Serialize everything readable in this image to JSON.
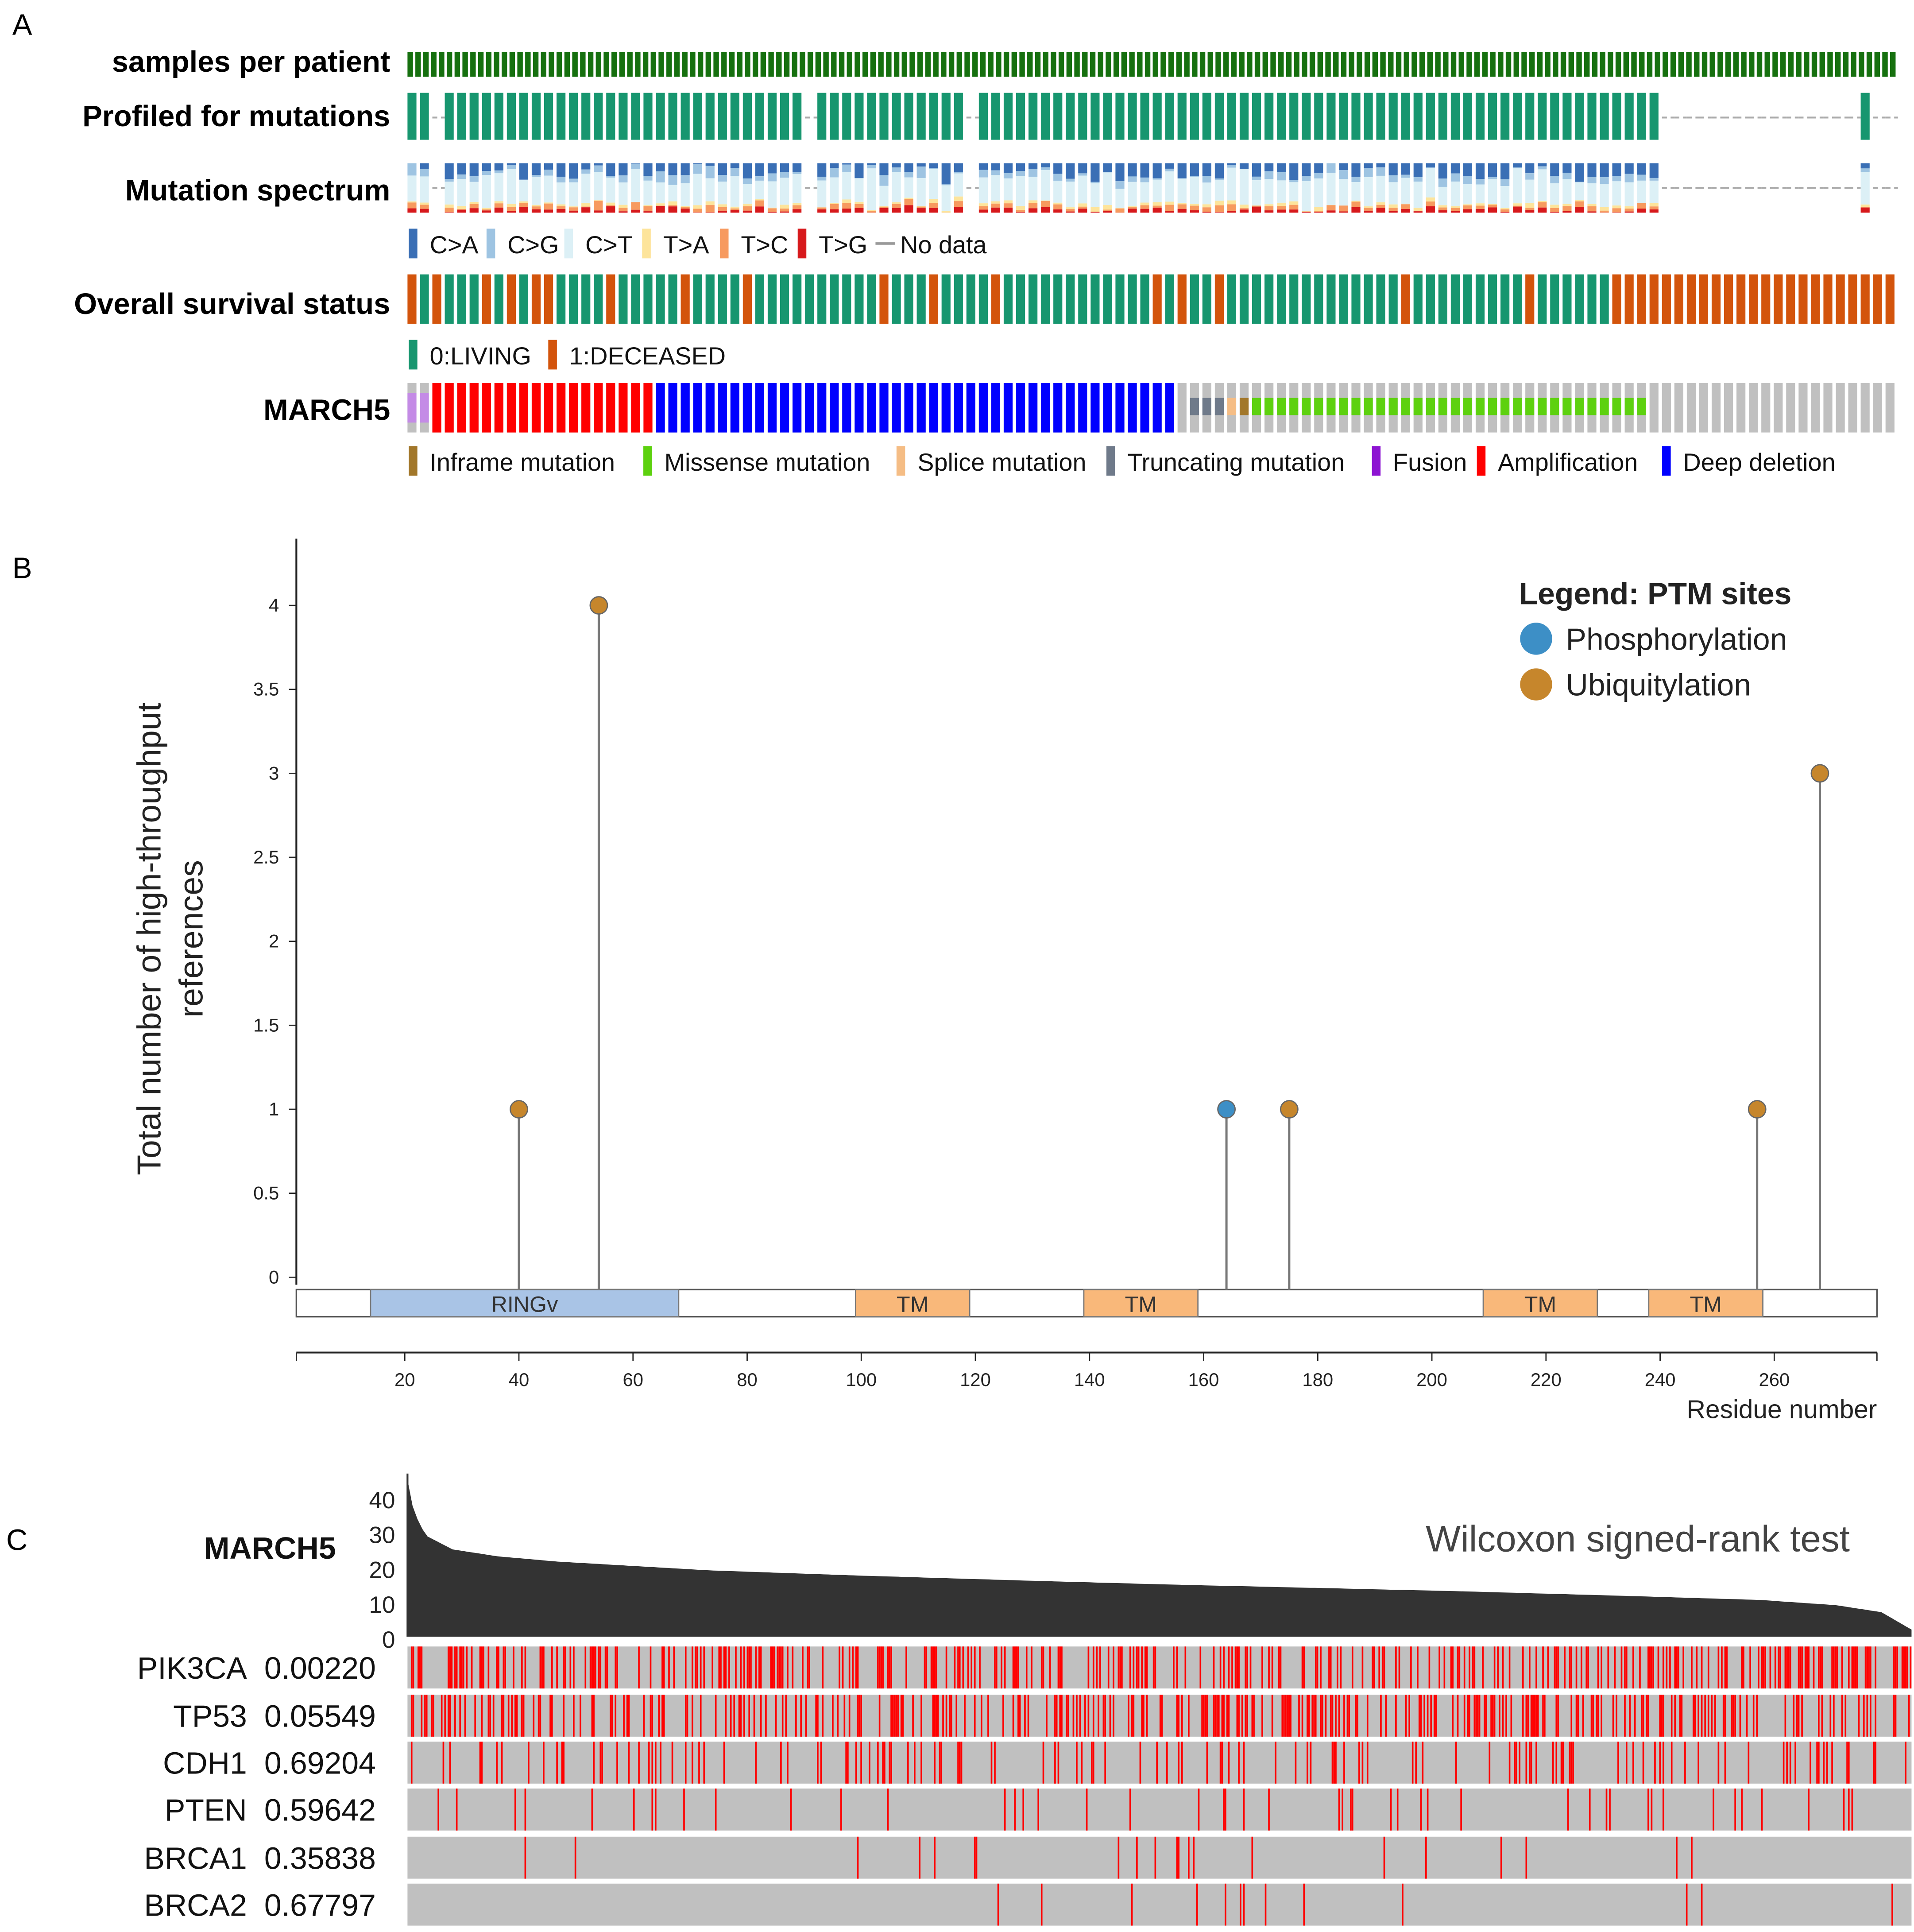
{
  "panels": {
    "a": "A",
    "b": "B",
    "c": "C"
  },
  "panel_a": {
    "rows": {
      "samples": "samples per patient",
      "profiled": "Profiled for mutations",
      "spectrum": "Mutation spectrum",
      "survival": "Overall survival status",
      "gene": "MARCH5"
    },
    "spectrum_legend": [
      {
        "label": "C>A",
        "color": "#3a6fb5"
      },
      {
        "label": "C>G",
        "color": "#9ec4e2"
      },
      {
        "label": "C>T",
        "color": "#dcf0f6"
      },
      {
        "label": "T>A",
        "color": "#fde49b"
      },
      {
        "label": "T>C",
        "color": "#f79a5f"
      },
      {
        "label": "T>G",
        "color": "#d7191c"
      }
    ],
    "no_data_label": "No data",
    "survival_legend": [
      {
        "label": "0:LIVING",
        "color": "#17966f"
      },
      {
        "label": "1:DECEASED",
        "color": "#d3540c"
      }
    ],
    "alteration_legend": [
      {
        "label": "Inframe mutation",
        "color": "#a2772a",
        "code": "I"
      },
      {
        "label": "Missense mutation",
        "color": "#5dd10f",
        "code": "M"
      },
      {
        "label": "Splice mutation",
        "color": "#f5bd85",
        "code": "S"
      },
      {
        "label": "Truncating mutation",
        "color": "#6f7a8a",
        "code": "T"
      },
      {
        "label": "Fusion",
        "color": "#8d14d2",
        "code": "F"
      },
      {
        "label": "Amplification",
        "color": "#ff0000",
        "code": "A"
      },
      {
        "label": "Deep deletion",
        "color": "#0000ff",
        "code": "D"
      }
    ],
    "profiled": "110111111111111111111111111111110111111111111011111111111111111111111111111111111111111111111111111110000000000000000100",
    "survival": "101000101011000010000010000100000000001000100001000000000000101001000000000000001000000000100000011111111111111111111111",
    "alterations": "FFAAAAAAAAAAAAAAAAAADDDDDDDDDDDDDDDDDDDDDDDDDDDDDDDDDDDDDDDDDDNTTTSIMMMMMMMMMMMMMMMMMMMMMMMMMMMMMMMMNNNNNNNNNNNNNNNNNNNNNNN"
  },
  "chart_data": [
    {
      "type": "scatter",
      "subtype": "lollipop",
      "title": "",
      "xlabel": "Residue number",
      "ylabel": "Total number of high-throughput references",
      "ylabel_lines": [
        "Total number of high-throughput",
        "references"
      ],
      "xlim": [
        1,
        278
      ],
      "ylim": [
        0,
        4
      ],
      "x_ticks": [
        "20",
        "40",
        "60",
        "80",
        "100",
        "120",
        "140",
        "160",
        "180",
        "200",
        "220",
        "240",
        "260"
      ],
      "y_ticks": [
        "0",
        "0.5",
        "1",
        "1.5",
        "2",
        "2.5",
        "3",
        "3.5",
        "4"
      ],
      "legend_title": "Legend: PTM sites",
      "legend_position": "top-right",
      "series": [
        {
          "name": "Phosphorylation",
          "color": "#3d8fc6",
          "points": [
            {
              "x": 164,
              "y": 1
            }
          ]
        },
        {
          "name": "Ubiquitylation",
          "color": "#c6862c",
          "points": [
            {
              "x": 40,
              "y": 1
            },
            {
              "x": 54,
              "y": 4
            },
            {
              "x": 175,
              "y": 1
            },
            {
              "x": 257,
              "y": 1
            },
            {
              "x": 268,
              "y": 3
            }
          ]
        }
      ],
      "domains": [
        {
          "name": "RINGv",
          "start": 14,
          "end": 68,
          "color": "#a9c4e6"
        },
        {
          "name": "TM",
          "start": 99,
          "end": 119,
          "color": "#f9b87a"
        },
        {
          "name": "TM",
          "start": 139,
          "end": 159,
          "color": "#f9b87a"
        },
        {
          "name": "TM",
          "start": 209,
          "end": 229,
          "color": "#f9b87a"
        },
        {
          "name": "TM",
          "start": 238,
          "end": 258,
          "color": "#f9b87a"
        }
      ]
    },
    {
      "type": "bar",
      "title": "MARCH5",
      "annotation": "Wilcoxon signed-rank test",
      "ylim": [
        0,
        45
      ],
      "y_ticks": [
        "0",
        "10",
        "20",
        "30",
        "40"
      ],
      "sorted_profile": [
        [
          0,
          45
        ],
        [
          0.004,
          36
        ],
        [
          0.012,
          29
        ],
        [
          0.03,
          25
        ],
        [
          0.06,
          23
        ],
        [
          0.1,
          21.5
        ],
        [
          0.2,
          19
        ],
        [
          0.3,
          17.5
        ],
        [
          0.4,
          16.2
        ],
        [
          0.5,
          15
        ],
        [
          0.6,
          14
        ],
        [
          0.7,
          13
        ],
        [
          0.8,
          11.8
        ],
        [
          0.9,
          10.5
        ],
        [
          0.95,
          9
        ],
        [
          0.98,
          7
        ],
        [
          1,
          2
        ]
      ],
      "mutation_tracks": [
        {
          "gene": "PIK3CA",
          "p_value": "0.00220",
          "mutation_rate": 0.33
        },
        {
          "gene": "TP53",
          "p_value": "0.05549",
          "mutation_rate": 0.33
        },
        {
          "gene": "CDH1",
          "p_value": "0.69204",
          "mutation_rate": 0.12
        },
        {
          "gene": "PTEN",
          "p_value": "0.59642",
          "mutation_rate": 0.05
        },
        {
          "gene": "BRCA1",
          "p_value": "0.35838",
          "mutation_rate": 0.025
        },
        {
          "gene": "BRCA2",
          "p_value": "0.67797",
          "mutation_rate": 0.02
        }
      ]
    }
  ]
}
